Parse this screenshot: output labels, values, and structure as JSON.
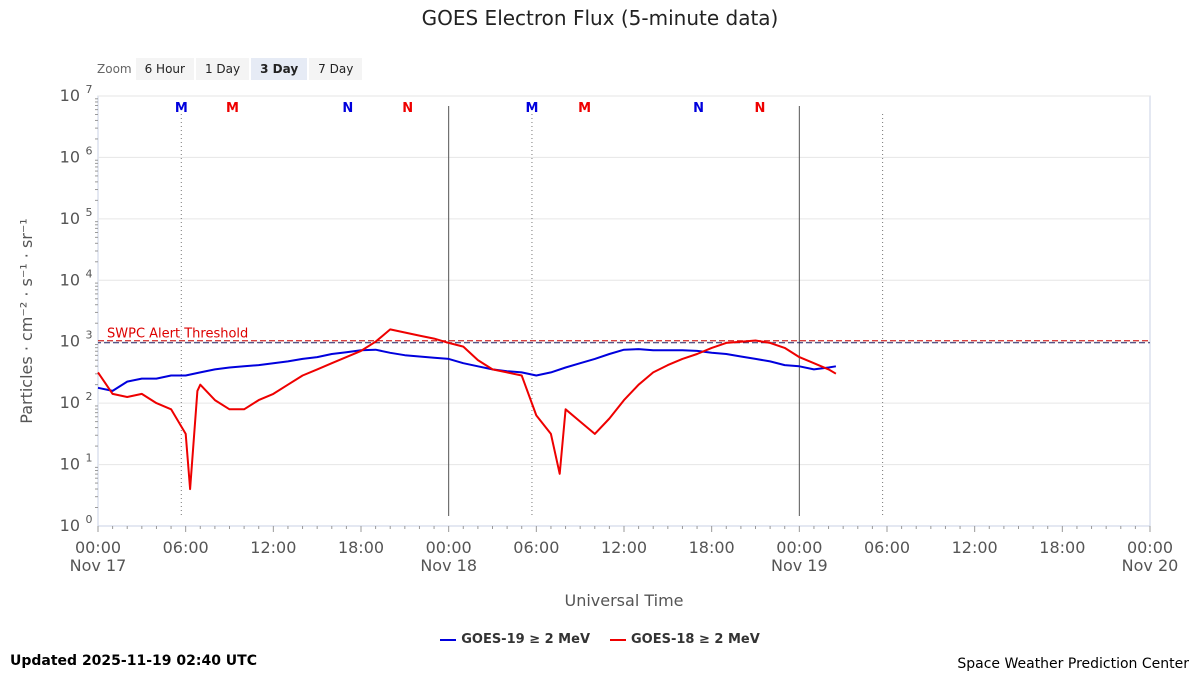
{
  "title": "GOES Electron Flux (5-minute data)",
  "zoom": {
    "label": "Zoom",
    "buttons": [
      "6 Hour",
      "1 Day",
      "3 Day",
      "7 Day"
    ],
    "active": "3 Day"
  },
  "footer": {
    "updated": "Updated 2025-11-19 02:40 UTC",
    "credit": "Space Weather Prediction Center"
  },
  "colors": {
    "goes19": "#0000dd",
    "goes18": "#ee0000",
    "threshold": "#990000"
  },
  "chart_data": {
    "type": "line",
    "title": "GOES Electron Flux (5-minute data)",
    "xlabel": "Universal Time",
    "ylabel": "Particles · cm⁻² · s⁻¹ · sr⁻¹",
    "y_scale": "log",
    "ylim_exponent": [
      0,
      7
    ],
    "y_ticks": [
      "10",
      "10",
      "10",
      "10",
      "10",
      "10",
      "10",
      "10"
    ],
    "y_tick_exponents": [
      "0",
      "1",
      "2",
      "3",
      "4",
      "5",
      "6",
      "7"
    ],
    "x_range_hours": [
      0,
      72
    ],
    "x_ticks": [
      {
        "time": "00:00",
        "date": "Nov 17"
      },
      {
        "time": "06:00",
        "date": ""
      },
      {
        "time": "12:00",
        "date": ""
      },
      {
        "time": "18:00",
        "date": ""
      },
      {
        "time": "00:00",
        "date": "Nov 18"
      },
      {
        "time": "06:00",
        "date": ""
      },
      {
        "time": "12:00",
        "date": ""
      },
      {
        "time": "18:00",
        "date": ""
      },
      {
        "time": "00:00",
        "date": "Nov 19"
      },
      {
        "time": "06:00",
        "date": ""
      },
      {
        "time": "12:00",
        "date": ""
      },
      {
        "time": "18:00",
        "date": ""
      },
      {
        "time": "00:00",
        "date": "Nov 20"
      }
    ],
    "day_boundaries_hours": [
      24,
      48
    ],
    "noon_marks_hours": [
      5.7,
      29.7,
      53.7
    ],
    "mn_markers": [
      {
        "label": "M",
        "hour": 5.7,
        "series": "goes19"
      },
      {
        "label": "M",
        "hour": 9.2,
        "series": "goes18"
      },
      {
        "label": "N",
        "hour": 17.1,
        "series": "goes19"
      },
      {
        "label": "N",
        "hour": 21.2,
        "series": "goes18"
      },
      {
        "label": "M",
        "hour": 29.7,
        "series": "goes19"
      },
      {
        "label": "M",
        "hour": 33.3,
        "series": "goes18"
      },
      {
        "label": "N",
        "hour": 41.1,
        "series": "goes19"
      },
      {
        "label": "N",
        "hour": 45.3,
        "series": "goes18"
      }
    ],
    "threshold": {
      "label": "SWPC Alert Threshold",
      "value_exponent": 3
    },
    "legend": [
      {
        "name": "GOES-19 ≥ 2 MeV",
        "color": "#0000dd"
      },
      {
        "name": "GOES-18 ≥ 2 MeV",
        "color": "#ee0000"
      }
    ],
    "series": [
      {
        "name": "GOES-19 ≥ 2 MeV",
        "color": "#0000dd",
        "points": [
          [
            0,
            2.25
          ],
          [
            1,
            2.2
          ],
          [
            2,
            2.35
          ],
          [
            3,
            2.4
          ],
          [
            4,
            2.4
          ],
          [
            5,
            2.45
          ],
          [
            6,
            2.45
          ],
          [
            7,
            2.5
          ],
          [
            8,
            2.55
          ],
          [
            9,
            2.58
          ],
          [
            10,
            2.6
          ],
          [
            11,
            2.62
          ],
          [
            12,
            2.65
          ],
          [
            13,
            2.68
          ],
          [
            14,
            2.72
          ],
          [
            15,
            2.75
          ],
          [
            16,
            2.8
          ],
          [
            17,
            2.83
          ],
          [
            18,
            2.86
          ],
          [
            19,
            2.87
          ],
          [
            20,
            2.82
          ],
          [
            21,
            2.78
          ],
          [
            22,
            2.76
          ],
          [
            23,
            2.74
          ],
          [
            24,
            2.72
          ],
          [
            25,
            2.65
          ],
          [
            26,
            2.6
          ],
          [
            27,
            2.55
          ],
          [
            28,
            2.52
          ],
          [
            29,
            2.5
          ],
          [
            30,
            2.45
          ],
          [
            31,
            2.5
          ],
          [
            32,
            2.58
          ],
          [
            33,
            2.65
          ],
          [
            34,
            2.72
          ],
          [
            35,
            2.8
          ],
          [
            36,
            2.87
          ],
          [
            37,
            2.88
          ],
          [
            38,
            2.86
          ],
          [
            39,
            2.86
          ],
          [
            40,
            2.86
          ],
          [
            41,
            2.85
          ],
          [
            42,
            2.82
          ],
          [
            43,
            2.8
          ],
          [
            44,
            2.76
          ],
          [
            45,
            2.72
          ],
          [
            46,
            2.68
          ],
          [
            47,
            2.62
          ],
          [
            48,
            2.6
          ],
          [
            49,
            2.55
          ],
          [
            50,
            2.58
          ],
          [
            50.5,
            2.6
          ]
        ]
      },
      {
        "name": "GOES-18 ≥ 2 MeV",
        "color": "#ee0000",
        "points": [
          [
            0,
            2.5
          ],
          [
            1,
            2.15
          ],
          [
            2,
            2.1
          ],
          [
            3,
            2.15
          ],
          [
            4,
            2.0
          ],
          [
            5,
            1.9
          ],
          [
            6,
            1.5
          ],
          [
            6.3,
            0.6
          ],
          [
            6.8,
            2.2
          ],
          [
            7,
            2.3
          ],
          [
            8,
            2.05
          ],
          [
            9,
            1.9
          ],
          [
            10,
            1.9
          ],
          [
            11,
            2.05
          ],
          [
            12,
            2.15
          ],
          [
            13,
            2.3
          ],
          [
            14,
            2.45
          ],
          [
            15,
            2.55
          ],
          [
            16,
            2.65
          ],
          [
            17,
            2.75
          ],
          [
            18,
            2.85
          ],
          [
            19,
            3.0
          ],
          [
            20,
            3.2
          ],
          [
            21,
            3.15
          ],
          [
            22,
            3.1
          ],
          [
            23,
            3.05
          ],
          [
            24,
            2.98
          ],
          [
            25,
            2.92
          ],
          [
            26,
            2.7
          ],
          [
            27,
            2.55
          ],
          [
            28,
            2.5
          ],
          [
            29,
            2.45
          ],
          [
            30,
            1.8
          ],
          [
            31,
            1.5
          ],
          [
            31.6,
            0.85
          ],
          [
            32,
            1.9
          ],
          [
            33,
            1.7
          ],
          [
            34,
            1.5
          ],
          [
            35,
            1.75
          ],
          [
            36,
            2.05
          ],
          [
            37,
            2.3
          ],
          [
            38,
            2.5
          ],
          [
            39,
            2.62
          ],
          [
            40,
            2.72
          ],
          [
            41,
            2.8
          ],
          [
            42,
            2.9
          ],
          [
            43,
            2.98
          ],
          [
            44,
            3.0
          ],
          [
            45,
            3.02
          ],
          [
            46,
            2.98
          ],
          [
            47,
            2.9
          ],
          [
            48,
            2.75
          ],
          [
            49,
            2.65
          ],
          [
            50,
            2.55
          ],
          [
            50.5,
            2.48
          ]
        ]
      }
    ]
  }
}
